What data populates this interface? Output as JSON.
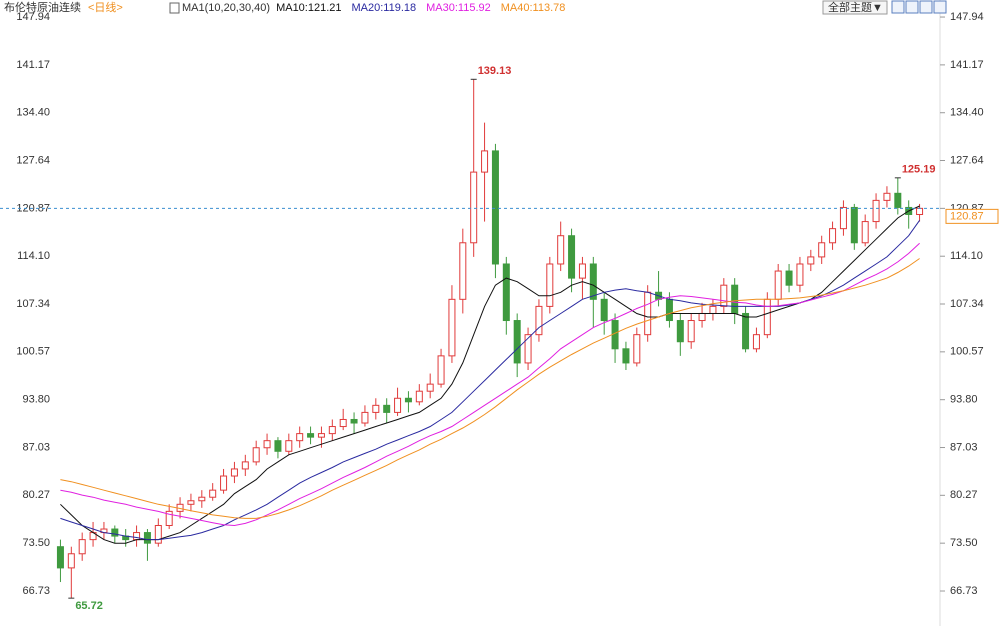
{
  "chart_data": {
    "type": "candlestick",
    "title": "布伦特原油连续",
    "period": "<日线>",
    "indicator": "MA1(10,20,30,40)",
    "theme_button": "全部主题▼",
    "up_color": "#e03a3a",
    "down_color": "#3f9a3f",
    "ylim": [
      61.78,
      150.35
    ],
    "yticks": [
      {
        "value": 66.73,
        "label": "66.73"
      },
      {
        "value": 73.5,
        "label": "73.50"
      },
      {
        "value": 80.27,
        "label": "80.27"
      },
      {
        "value": 87.03,
        "label": "87.03"
      },
      {
        "value": 93.8,
        "label": "93.80"
      },
      {
        "value": 100.57,
        "label": "100.57"
      },
      {
        "value": 107.34,
        "label": "107.34"
      },
      {
        "value": 114.1,
        "label": "114.10"
      },
      {
        "value": 120.87,
        "label": "120.87"
      },
      {
        "value": 127.64,
        "label": "127.64"
      },
      {
        "value": 134.4,
        "label": "134.40"
      },
      {
        "value": 141.17,
        "label": "141.17"
      },
      {
        "value": 147.94,
        "label": "147.94"
      }
    ],
    "last_price": 120.87,
    "annotations": [
      139.13,
      125.19,
      65.72
    ],
    "candles": [
      [
        73,
        74,
        68,
        70
      ],
      [
        70,
        73,
        65.72,
        72
      ],
      [
        72,
        75,
        71,
        74
      ],
      [
        74,
        76.5,
        73,
        75
      ],
      [
        75,
        76.5,
        74,
        75.5
      ],
      [
        75.5,
        76,
        73.5,
        74.5
      ],
      [
        74.5,
        75.5,
        73,
        74
      ],
      [
        74,
        76,
        73,
        75
      ],
      [
        75,
        75.5,
        71,
        73.5
      ],
      [
        73.5,
        77,
        73,
        76
      ],
      [
        76,
        79,
        75.5,
        78
      ],
      [
        78,
        80,
        77,
        79
      ],
      [
        79,
        80.5,
        78,
        79.5
      ],
      [
        79.5,
        81,
        78.5,
        80
      ],
      [
        80,
        82,
        79.5,
        81
      ],
      [
        81,
        84,
        80.5,
        83
      ],
      [
        83,
        85,
        82,
        84
      ],
      [
        84,
        86,
        83,
        85
      ],
      [
        85,
        88,
        84.5,
        87
      ],
      [
        87,
        89,
        86,
        88
      ],
      [
        88,
        88.5,
        85.5,
        86.5
      ],
      [
        86.5,
        89,
        86,
        88
      ],
      [
        88,
        90,
        87,
        89
      ],
      [
        89,
        90,
        87.5,
        88.5
      ],
      [
        88.5,
        90,
        87,
        89
      ],
      [
        89,
        91,
        88,
        90
      ],
      [
        90,
        92.5,
        89.5,
        91
      ],
      [
        91,
        92,
        89,
        90.5
      ],
      [
        90.5,
        93,
        90,
        92
      ],
      [
        92,
        94,
        91,
        93
      ],
      [
        93,
        94,
        90.5,
        92
      ],
      [
        92,
        95.5,
        91.5,
        94
      ],
      [
        94,
        95,
        92,
        93.5
      ],
      [
        93.5,
        96,
        93,
        95
      ],
      [
        95,
        97.5,
        94,
        96
      ],
      [
        96,
        101,
        95.5,
        100
      ],
      [
        100,
        110,
        99,
        108
      ],
      [
        108,
        118,
        106,
        116
      ],
      [
        116,
        139.13,
        114,
        126
      ],
      [
        126,
        133,
        119,
        129
      ],
      [
        129,
        130,
        111,
        113
      ],
      [
        113,
        114,
        103,
        105
      ],
      [
        105,
        106,
        97,
        99
      ],
      [
        99,
        104,
        98,
        103
      ],
      [
        103,
        108,
        102,
        107
      ],
      [
        107,
        114,
        106,
        113
      ],
      [
        113,
        119,
        112,
        117
      ],
      [
        117,
        118,
        109,
        111
      ],
      [
        111,
        114,
        108,
        113
      ],
      [
        113,
        114,
        104,
        108
      ],
      [
        108,
        109,
        103,
        105
      ],
      [
        105,
        106,
        99,
        101
      ],
      [
        101,
        102,
        98,
        99
      ],
      [
        99,
        104,
        98.5,
        103
      ],
      [
        103,
        110,
        102,
        109
      ],
      [
        109,
        112,
        107,
        108
      ],
      [
        108,
        109,
        104,
        105
      ],
      [
        105,
        106,
        100,
        102
      ],
      [
        102,
        106,
        101,
        105
      ],
      [
        105,
        107.5,
        104,
        106
      ],
      [
        106,
        108,
        105,
        107
      ],
      [
        107,
        111,
        106,
        110
      ],
      [
        110,
        111,
        104.5,
        106
      ],
      [
        106,
        107,
        100.5,
        101
      ],
      [
        101,
        104,
        100.5,
        103
      ],
      [
        103,
        109,
        102.5,
        108
      ],
      [
        108,
        113,
        107,
        112
      ],
      [
        112,
        113,
        109,
        110
      ],
      [
        110,
        114,
        109,
        113
      ],
      [
        113,
        115,
        112,
        114
      ],
      [
        114,
        117,
        113,
        116
      ],
      [
        116,
        119,
        115,
        118
      ],
      [
        118,
        122,
        117,
        121
      ],
      [
        121,
        121.5,
        115,
        116
      ],
      [
        116,
        120,
        115.5,
        119
      ],
      [
        119,
        123,
        118,
        122
      ],
      [
        122,
        124,
        121,
        123
      ],
      [
        123,
        125.19,
        120,
        121
      ],
      [
        121,
        122,
        118,
        120
      ],
      [
        120,
        121.5,
        119,
        120.87
      ]
    ],
    "series": [
      {
        "name": "MA10:121.21",
        "color": "#111111",
        "values": [
          79,
          77.5,
          76,
          75,
          74,
          73.5,
          73.5,
          74,
          74,
          74,
          74.5,
          75,
          76,
          77,
          78,
          79,
          80.5,
          81.5,
          82.5,
          84,
          85,
          86,
          86.5,
          87,
          87.5,
          88,
          88.5,
          89,
          89.5,
          90,
          90.5,
          91,
          91.5,
          92,
          93,
          94,
          96,
          99,
          103,
          107,
          110,
          111,
          110.5,
          109.5,
          108.5,
          108.5,
          109,
          110,
          110.5,
          110,
          109,
          108,
          107,
          106,
          105.5,
          105.5,
          106,
          106,
          106,
          106,
          106,
          106,
          106,
          105.5,
          105.5,
          106,
          106.5,
          107,
          107.5,
          108,
          109,
          110.5,
          112,
          113.5,
          115,
          116.5,
          118,
          119.5,
          120.5,
          121.21
        ]
      },
      {
        "name": "MA20:119.18",
        "color": "#2a2aa0",
        "values": [
          77,
          76.5,
          76,
          75.5,
          75,
          74.8,
          74.5,
          74.3,
          74,
          74,
          74.2,
          74.4,
          74.6,
          75,
          75.5,
          76,
          76.8,
          77.5,
          78.2,
          79,
          80,
          81,
          82,
          82.8,
          83.5,
          84.2,
          85,
          85.6,
          86.2,
          86.8,
          87.5,
          88.1,
          88.7,
          89.3,
          90,
          91,
          92,
          93.5,
          95,
          96.5,
          98,
          99.5,
          101,
          102.5,
          104,
          105,
          106,
          107,
          108,
          108.5,
          109,
          109.3,
          109.5,
          109.2,
          109,
          108.5,
          108,
          107.8,
          107.5,
          107.3,
          107.2,
          107.1,
          107,
          107,
          107,
          107,
          107,
          107.2,
          107.5,
          108,
          108.5,
          109.2,
          110,
          111,
          112,
          113,
          114,
          115.5,
          117,
          119.18
        ]
      },
      {
        "name": "MA30:115.92",
        "color": "#e020e0",
        "values": [
          81,
          80.7,
          80.3,
          80,
          79.6,
          79.3,
          79,
          78.6,
          78.3,
          78,
          77.6,
          77.3,
          77,
          76.7,
          76.4,
          76.1,
          76,
          76.3,
          76.8,
          77.5,
          78.2,
          79,
          79.8,
          80.5,
          81.2,
          82,
          82.8,
          83.5,
          84.2,
          85,
          85.8,
          86.5,
          87.2,
          88,
          88.7,
          89.3,
          90,
          91,
          92,
          93,
          94,
          95,
          96,
          97,
          98.3,
          99.6,
          101,
          102,
          103,
          104,
          104.7,
          105.3,
          106,
          106.7,
          107.3,
          108,
          108.3,
          108.5,
          108.4,
          108.2,
          108,
          107.8,
          107.6,
          107.5,
          107.2,
          107,
          107.1,
          107.3,
          107.5,
          107.9,
          108.3,
          108.7,
          109.2,
          110,
          110.8,
          111.5,
          112.3,
          113.3,
          114.5,
          115.92
        ]
      },
      {
        "name": "MA40:113.78",
        "color": "#f09020",
        "values": [
          82.5,
          82.2,
          81.8,
          81.4,
          81,
          80.6,
          80.2,
          79.8,
          79.4,
          79,
          78.7,
          78.4,
          78.1,
          77.8,
          77.5,
          77.3,
          77.1,
          77,
          77,
          77.3,
          77.7,
          78.2,
          78.8,
          79.5,
          80.2,
          81,
          81.7,
          82.4,
          83.1,
          83.8,
          84.5,
          85.3,
          86,
          86.7,
          87.5,
          88.2,
          89,
          89.8,
          90.7,
          91.7,
          92.8,
          94,
          95.2,
          96.3,
          97.4,
          98.4,
          99.3,
          100.2,
          101,
          101.8,
          102.5,
          103.2,
          103.9,
          104.5,
          105,
          105.5,
          106,
          106.4,
          106.8,
          107.1,
          107.4,
          107.6,
          107.8,
          107.9,
          108,
          108,
          108,
          108.1,
          108.2,
          108.4,
          108.6,
          108.9,
          109.2,
          109.6,
          110,
          110.5,
          111,
          111.8,
          112.7,
          113.78
        ]
      }
    ]
  }
}
